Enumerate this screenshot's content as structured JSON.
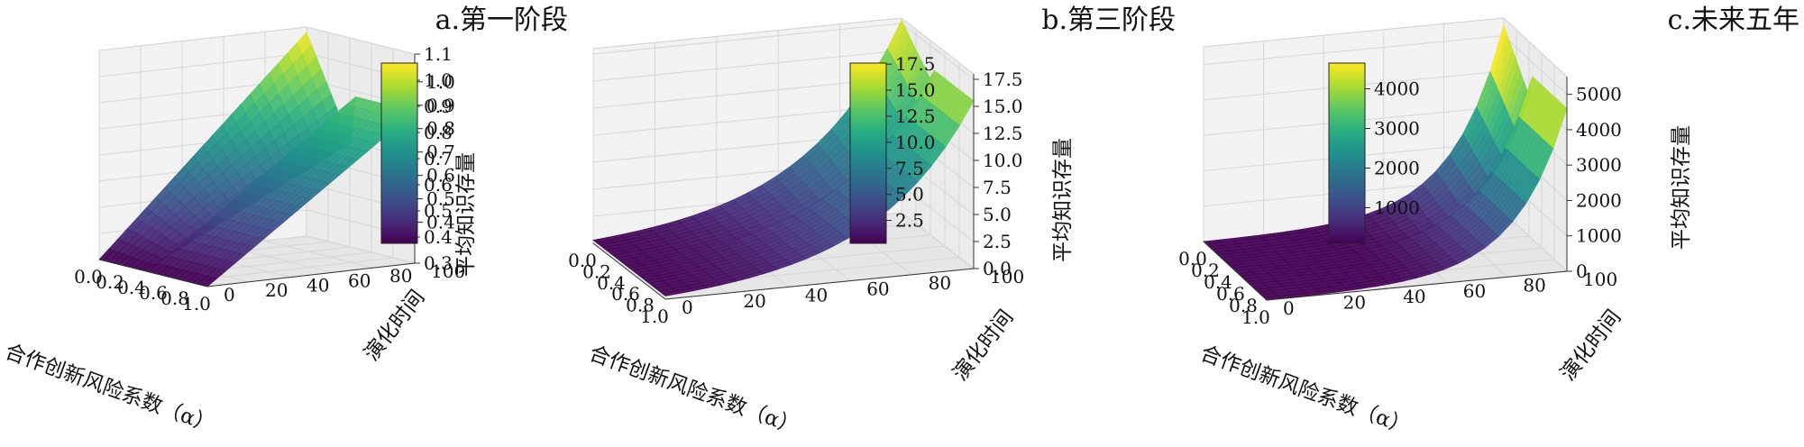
{
  "colormap": [
    "#440154",
    "#472d7b",
    "#3b528b",
    "#2c728e",
    "#21918c",
    "#28ae80",
    "#5ec962",
    "#addc30",
    "#fde725"
  ],
  "chart_data": [
    {
      "type": "surface3d",
      "title": "a.第一阶段",
      "xlabel": "合作创新风险系数（α）",
      "ylabel": "演化时间",
      "zlabel": "平均知识存量",
      "x_ticks": [
        "0.0",
        "0.2",
        "0.4",
        "0.6",
        "0.8",
        "1.0"
      ],
      "y_ticks": [
        "0",
        "20",
        "40",
        "60",
        "80",
        "100"
      ],
      "z_ticks": [
        "0.3",
        "0.4",
        "0.5",
        "0.6",
        "0.7",
        "0.8",
        "0.9",
        "1.0",
        "1.1"
      ],
      "zlim": [
        0.3,
        1.1
      ],
      "xlim": [
        0,
        1
      ],
      "ylim": [
        0,
        100
      ],
      "surface": {
        "alpha_break": 0.45,
        "z_at_t0": 0.3,
        "left_z_at_t100_alpha0": 1.08,
        "left_z_at_t100_break": 0.66,
        "right_z_at_t100": 0.88,
        "growth": "linear"
      },
      "colorbar_ticks": [
        "0.4",
        "0.5",
        "0.6",
        "0.7",
        "0.8",
        "0.9",
        "1.0"
      ],
      "colorbar_range": [
        0.31,
        1.08
      ]
    },
    {
      "type": "surface3d",
      "title": "b.第三阶段",
      "xlabel": "合作创新风险系数（α）",
      "ylabel": "演化时间",
      "zlabel": "平均知识存量",
      "x_ticks": [
        "0.0",
        "0.2",
        "0.4",
        "0.6",
        "0.8",
        "1.0"
      ],
      "y_ticks": [
        "0",
        "20",
        "40",
        "60",
        "80",
        "100"
      ],
      "z_ticks": [
        "0.0",
        "2.5",
        "5.0",
        "7.5",
        "10.0",
        "12.5",
        "15.0",
        "17.5"
      ],
      "zlim": [
        0,
        18
      ],
      "xlim": [
        0,
        1
      ],
      "ylim": [
        0,
        100
      ],
      "surface": {
        "alpha_break": 0.45,
        "z_at_t0": 0.3,
        "left_z_at_t100_alpha0": 17.8,
        "left_z_at_t100_break": 14.0,
        "right_z_at_t100": 15.5,
        "growth": "exponential"
      },
      "colorbar_ticks": [
        "2.5",
        "5.0",
        "7.5",
        "10.0",
        "12.5",
        "15.0",
        "17.5"
      ],
      "colorbar_range": [
        0.3,
        17.6
      ]
    },
    {
      "type": "surface3d",
      "title": "c.未来五年",
      "xlabel": "合作创新风险系数（α）",
      "ylabel": "演化时间",
      "zlabel": "平均知识存量",
      "x_ticks": [
        "0.0",
        "0.2",
        "0.4",
        "0.6",
        "0.8",
        "1.0"
      ],
      "y_ticks": [
        "0",
        "20",
        "40",
        "60",
        "80",
        "100"
      ],
      "z_ticks": [
        "0",
        "1000",
        "2000",
        "3000",
        "4000",
        "5000"
      ],
      "zlim": [
        0,
        5500
      ],
      "xlim": [
        0,
        1
      ],
      "ylim": [
        0,
        100
      ],
      "surface": {
        "alpha_break": 0.45,
        "z_at_t0": 0,
        "left_z_at_t100_alpha0": 5300,
        "left_z_at_t100_break": 3800,
        "right_z_at_t100": 4600,
        "growth": "exponential_steep"
      },
      "colorbar_ticks": [
        "1000",
        "2000",
        "3000",
        "4000"
      ],
      "colorbar_range": [
        100,
        4650
      ]
    }
  ]
}
